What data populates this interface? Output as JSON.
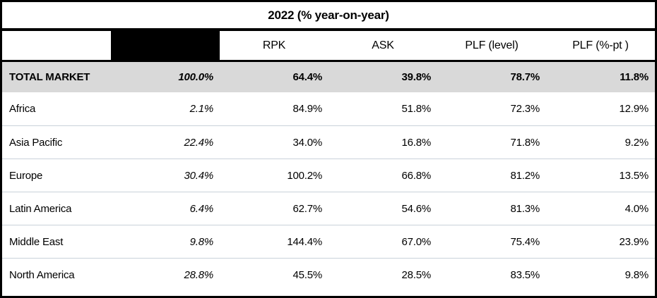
{
  "chart_data": {
    "type": "table",
    "title": "2022 (% year-on-year)",
    "header": {
      "rpk": "RPK",
      "ask": "ASK",
      "plf_level": "PLF (level)",
      "plf_pt": "PLF (%-pt )"
    },
    "total_row": {
      "label": "TOTAL MARKET",
      "share": "100.0%",
      "rpk": "64.4%",
      "ask": "39.8%",
      "plf_level": "78.7%",
      "plf_pt": "11.8%"
    },
    "rows": [
      {
        "label": "Africa",
        "share": "2.1%",
        "rpk": "84.9%",
        "ask": "51.8%",
        "plf_level": "72.3%",
        "plf_pt": "12.9%"
      },
      {
        "label": "Asia Pacific",
        "share": "22.4%",
        "rpk": "34.0%",
        "ask": "16.8%",
        "plf_level": "71.8%",
        "plf_pt": "9.2%"
      },
      {
        "label": "Europe",
        "share": "30.4%",
        "rpk": "100.2%",
        "ask": "66.8%",
        "plf_level": "81.2%",
        "plf_pt": "13.5%"
      },
      {
        "label": "Latin America",
        "share": "6.4%",
        "rpk": "62.7%",
        "ask": "54.6%",
        "plf_level": "81.3%",
        "plf_pt": "4.0%"
      },
      {
        "label": "Middle East",
        "share": "9.8%",
        "rpk": "144.4%",
        "ask": "67.0%",
        "plf_level": "75.4%",
        "plf_pt": "23.9%"
      },
      {
        "label": "North America",
        "share": "28.8%",
        "rpk": "45.5%",
        "ask": "28.5%",
        "plf_level": "83.5%",
        "plf_pt": "9.8%"
      }
    ],
    "layout": {
      "grid": "horizontal-dividers-only",
      "numeric_alignment": "right",
      "share_column_style": "italic"
    }
  },
  "colors": {
    "border": "#000000",
    "total_row_bg": "#d9d9d9",
    "row_divider": "#c9d2da",
    "redacted_cell": "#000000",
    "text": "#000000",
    "background": "#ffffff"
  }
}
